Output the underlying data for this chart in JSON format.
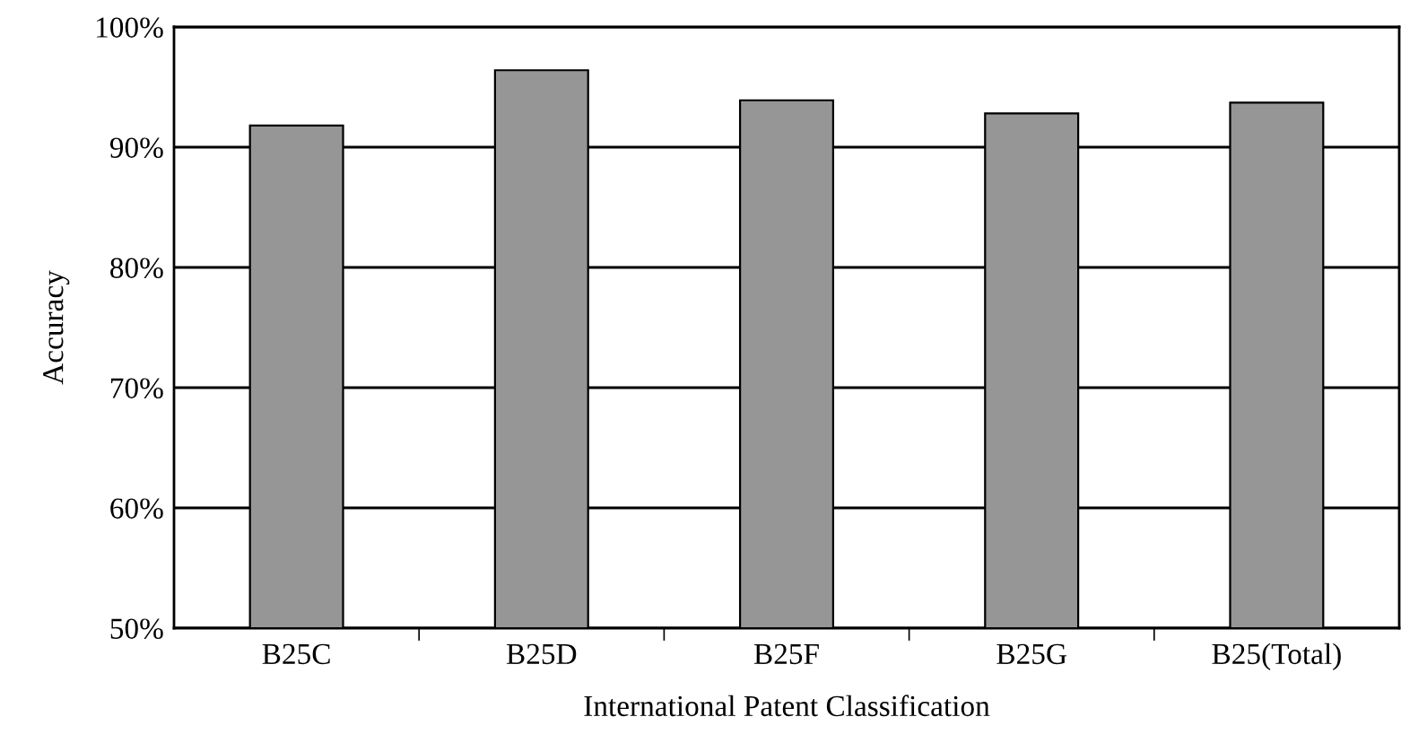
{
  "chart_data": {
    "type": "bar",
    "xlabel": "International Patent Classification",
    "ylabel": "Accuracy",
    "categories": [
      "B25C",
      "B25D",
      "B25F",
      "B25G",
      "B25(Total)"
    ],
    "values": [
      91.8,
      96.4,
      93.9,
      92.8,
      93.7
    ],
    "color": "#969696",
    "ylim": [
      50,
      100
    ],
    "yticks": [
      {
        "value": 50,
        "label": "50%"
      },
      {
        "value": 60,
        "label": "60%"
      },
      {
        "value": 70,
        "label": "70%"
      },
      {
        "value": 80,
        "label": "80%"
      },
      {
        "value": 90,
        "label": "90%"
      },
      {
        "value": 100,
        "label": "100%"
      }
    ],
    "grid": "y"
  }
}
